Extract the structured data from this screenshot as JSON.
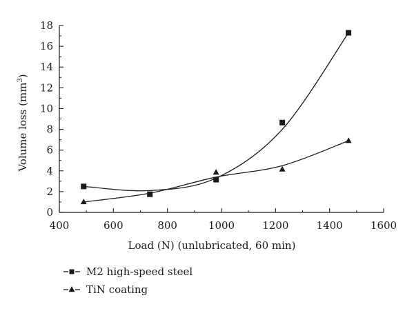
{
  "chart_data": {
    "type": "scatter",
    "title": "",
    "xlabel": "Load (N) (unlubricated, 60 min)",
    "ylabel_main": "Volume loss (mm",
    "ylabel_sup": "3",
    "ylabel_close": ")",
    "xlim": [
      400,
      1600
    ],
    "ylim": [
      0,
      18
    ],
    "xticks": [
      400,
      600,
      800,
      1000,
      1200,
      1400,
      1600
    ],
    "yticks": [
      0,
      2,
      4,
      6,
      8,
      10,
      12,
      14,
      16,
      18
    ],
    "grid": false,
    "legend_position": "bottom-left",
    "series": [
      {
        "name": "M2 high-speed steel",
        "marker": "square",
        "x": [
          490,
          735,
          980,
          1225,
          1470
        ],
        "y": [
          2.5,
          1.75,
          3.15,
          8.65,
          17.3
        ],
        "fit_curve": [
          2.5,
          2.1,
          3.3,
          8.0,
          17.3
        ]
      },
      {
        "name": "TiN coating",
        "marker": "triangle",
        "x": [
          490,
          735,
          980,
          1225,
          1470
        ],
        "y": [
          1.0,
          1.7,
          3.85,
          4.15,
          6.9
        ],
        "fit_curve": [
          1.0,
          1.85,
          3.4,
          4.5,
          6.9
        ]
      }
    ]
  }
}
